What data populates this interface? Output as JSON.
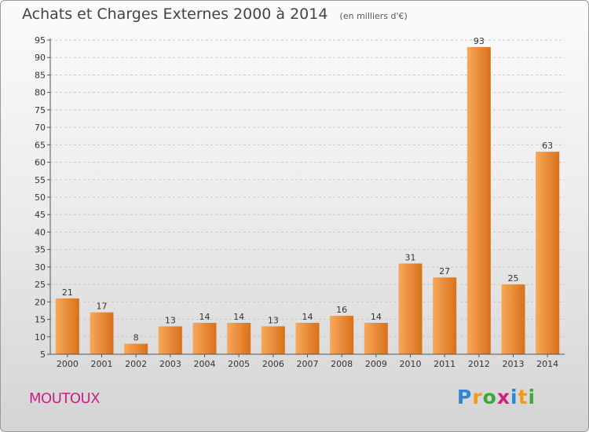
{
  "header": {
    "title": "Achats et Charges Externes 2000 à 2014",
    "unit": "(en milliers d'€)"
  },
  "footer": {
    "commune": "MOUTOUX",
    "brand_letters": [
      {
        "char": "P",
        "color": "#2e86d3"
      },
      {
        "char": "r",
        "color": "#f29a1c"
      },
      {
        "char": "o",
        "color": "#3aa935"
      },
      {
        "char": "x",
        "color": "#d11f7a"
      },
      {
        "char": "i",
        "color": "#2e86d3"
      },
      {
        "char": "t",
        "color": "#f29a1c"
      },
      {
        "char": "i",
        "color": "#3aa935"
      }
    ]
  },
  "chart_data": {
    "type": "bar",
    "title": "Achats et Charges Externes 2000 à 2014",
    "subtitle": "(en milliers d'€)",
    "xlabel": "",
    "ylabel": "",
    "categories": [
      "2000",
      "2001",
      "2002",
      "2003",
      "2004",
      "2005",
      "2006",
      "2007",
      "2008",
      "2009",
      "2010",
      "2011",
      "2012",
      "2013",
      "2014"
    ],
    "values": [
      21,
      17,
      8,
      13,
      14,
      14,
      13,
      14,
      16,
      14,
      31,
      27,
      93,
      25,
      63
    ],
    "ylim": [
      5,
      95
    ],
    "yticks": [
      5,
      10,
      15,
      20,
      25,
      30,
      35,
      40,
      45,
      50,
      55,
      60,
      65,
      70,
      75,
      80,
      85,
      90,
      95
    ],
    "grid": "horizontal dashed",
    "legend": "none",
    "colors": {
      "bar": "#f08a24",
      "bar_light": "#f7a85a",
      "bar_dark": "#d9701a",
      "grid": "#c8c8c8",
      "axis": "#555555"
    }
  }
}
